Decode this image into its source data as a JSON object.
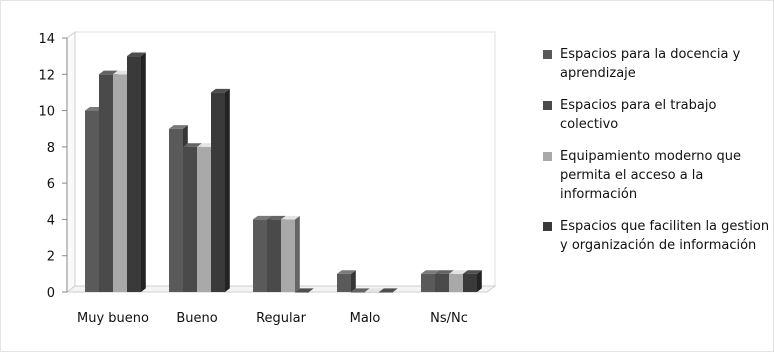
{
  "chart_data": {
    "type": "bar",
    "title": "",
    "xlabel": "",
    "ylabel": "",
    "ylim": [
      0,
      14
    ],
    "yticks": [
      0,
      2,
      4,
      6,
      8,
      10,
      12,
      14
    ],
    "categories": [
      "Muy bueno",
      "Bueno",
      "Regular",
      "Malo",
      "Ns/Nc"
    ],
    "series": [
      {
        "name": "Espacios para la docencia y aprendizaje",
        "color": "#5a5a5a",
        "values": [
          10,
          9,
          4,
          1,
          1
        ]
      },
      {
        "name": "Espacios para el trabajo colectivo",
        "color": "#4a4a4a",
        "values": [
          12,
          8,
          4,
          0,
          1
        ]
      },
      {
        "name": "Equipamiento moderno que permita el acceso a la información",
        "color": "#a9a9a9",
        "values": [
          12,
          8,
          4,
          0,
          1
        ]
      },
      {
        "name": "Espacios que faciliten la gestion y organización de información",
        "color": "#3a3a3a",
        "values": [
          13,
          11,
          0,
          0,
          1
        ]
      }
    ],
    "legend_position": "right",
    "grid": false,
    "style": "3d-bar"
  }
}
